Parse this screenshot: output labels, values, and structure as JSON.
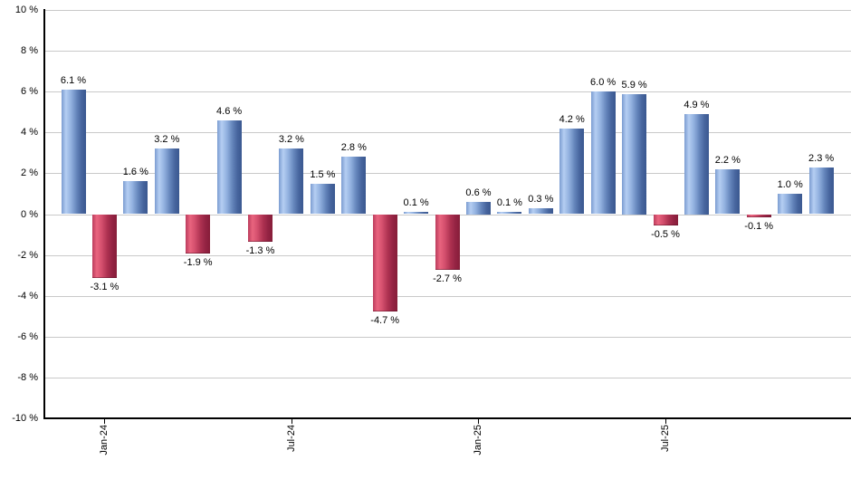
{
  "chart_data": {
    "type": "bar",
    "title": "",
    "xlabel": "",
    "ylabel": "",
    "ylim": [
      -10,
      10
    ],
    "y_tick_step": 2,
    "grid": true,
    "legend": "none",
    "y_ticks": [
      {
        "value": 10,
        "label": "10 %"
      },
      {
        "value": 8,
        "label": "8 %"
      },
      {
        "value": 6,
        "label": "6 %"
      },
      {
        "value": 4,
        "label": "4 %"
      },
      {
        "value": 2,
        "label": "2 %"
      },
      {
        "value": 0,
        "label": "0 %"
      },
      {
        "value": -2,
        "label": "-2 %"
      },
      {
        "value": -4,
        "label": "-4 %"
      },
      {
        "value": -6,
        "label": "-6 %"
      },
      {
        "value": -8,
        "label": "-8 %"
      },
      {
        "value": -10,
        "label": "-10 %"
      }
    ],
    "values": [
      6.1,
      -3.1,
      1.6,
      3.2,
      -1.9,
      4.6,
      -1.3,
      3.2,
      1.5,
      2.8,
      -4.7,
      0.1,
      -2.7,
      0.6,
      0.1,
      0.3,
      4.2,
      6.0,
      5.9,
      -0.5,
      4.9,
      2.2,
      -0.1,
      1.0,
      2.3
    ],
    "value_labels": [
      "6.1 %",
      "-3.1 %",
      "1.6 %",
      "3.2 %",
      "-1.9 %",
      "4.6 %",
      "-1.3 %",
      "3.2 %",
      "1.5 %",
      "2.8 %",
      "-4.7 %",
      "0.1 %",
      "-2.7 %",
      "0.6 %",
      "0.1 %",
      "0.3 %",
      "4.2 %",
      "6.0 %",
      "5.9 %",
      "-0.5 %",
      "4.9 %",
      "2.2 %",
      "-0.1 %",
      "1.0 %",
      "2.3 %"
    ],
    "x_ticks": [
      {
        "bar_index": 1,
        "label": "Jan-24"
      },
      {
        "bar_index": 7,
        "label": "Jul-24"
      },
      {
        "bar_index": 13,
        "label": "Jan-25"
      },
      {
        "bar_index": 19,
        "label": "Jul-25"
      }
    ]
  },
  "colors": {
    "background": "#ffffff",
    "gridline": "#c9c9c9",
    "axis": "#000000",
    "label_text": "#000000",
    "positive_gradient": [
      "#7b9cd1",
      "#b5cef2",
      "#93b2e0",
      "#6485bb",
      "#47659e",
      "#3a5890"
    ],
    "negative_gradient": [
      "#bc3c5c",
      "#e9647f",
      "#d44f6d",
      "#ad3150",
      "#932343",
      "#871d39"
    ]
  }
}
